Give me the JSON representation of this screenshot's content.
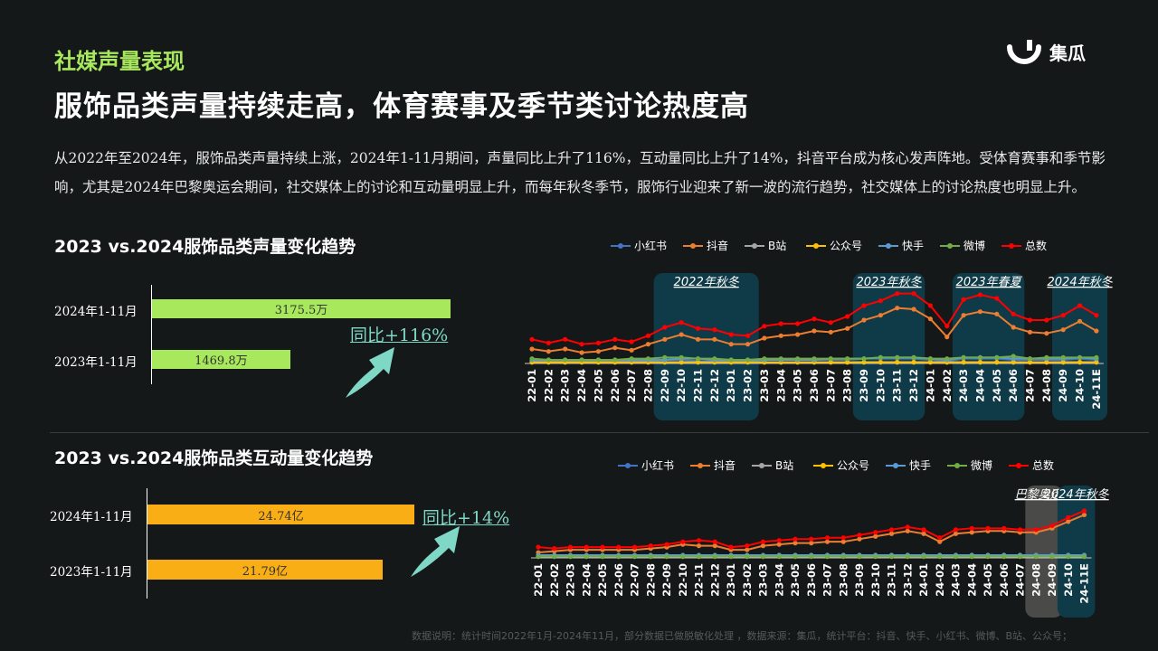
{
  "header": {
    "section_tag": "社媒声量表现",
    "headline": "服饰品类声量持续走高，体育赛事及季节类讨论热度高",
    "logo_text": "集瓜"
  },
  "intro": "从2022年至2024年，服饰品类声量持续上涨，2024年1-11月期间，声量同比上升了116%，互动量同比上升了14%，抖音平台成为核心发声阵地。受体育赛事和季节影响，尤其是2024年巴黎奥运会期间，社交媒体上的讨论和互动量明显上升，而每年秋冬季节，服饰行业迎来了新一波的流行趋势，社交媒体上的讨论热度也明显上升。",
  "footnote": "数据说明：统计时间2022年1月-2024年11月，部分数据已做脱敏化处理 ，数据来源：集瓜，统计平台：抖音、快手、小红书、微博、B站、公众号；",
  "colors": {
    "accent_green": "#a8e85c",
    "accent_orange": "#f9ae16",
    "teal": "#7fd8c5",
    "highlight_box": "#0f3a47"
  },
  "chart_data": [
    {
      "type": "bar",
      "title": "2023 vs.2024服饰品类声量变化趋势",
      "categories": [
        "2024年1-11月",
        "2023年1-11月"
      ],
      "values": [
        3175.5,
        1469.8
      ],
      "value_labels": [
        "3175.5万",
        "1469.8万"
      ],
      "bar_color": "#a8e85c",
      "annotation": "同比+116%",
      "icon": "arrow-up-icon"
    },
    {
      "type": "line",
      "legend": [
        "小红书",
        "抖音",
        "B站",
        "公众号",
        "快手",
        "微博",
        "总数"
      ],
      "legend_placement": "top",
      "series_colors": [
        "#4472c4",
        "#ed7d31",
        "#a5a5a5",
        "#ffc000",
        "#5b9bd5",
        "#70ad47",
        "#ff0000"
      ],
      "x": [
        "22-01",
        "22-02",
        "22-03",
        "22-04",
        "22-05",
        "22-06",
        "22-07",
        "22-08",
        "22-09",
        "22-10",
        "22-11",
        "22-12",
        "23-01",
        "23-02",
        "23-03",
        "23-04",
        "23-05",
        "23-06",
        "23-07",
        "23-08",
        "23-09",
        "23-10",
        "23-11",
        "23-12",
        "24-01",
        "24-02",
        "24-03",
        "24-04",
        "24-05",
        "24-06",
        "24-07",
        "24-08",
        "24-09",
        "24-10",
        "24-11E"
      ],
      "series": [
        {
          "name": "小红书",
          "values": [
            2,
            2,
            2,
            2,
            2,
            2,
            2,
            2,
            3,
            3,
            2,
            2,
            2,
            2,
            3,
            3,
            3,
            3,
            3,
            3,
            4,
            4,
            4,
            4,
            3,
            2,
            4,
            4,
            4,
            3,
            3,
            3,
            3,
            4,
            3
          ]
        },
        {
          "name": "抖音",
          "values": [
            12,
            10,
            12,
            9,
            10,
            13,
            11,
            16,
            20,
            24,
            20,
            20,
            16,
            16,
            21,
            23,
            24,
            27,
            26,
            29,
            36,
            40,
            46,
            45,
            37,
            22,
            40,
            43,
            41,
            30,
            26,
            25,
            28,
            35,
            27
          ]
        },
        {
          "name": "B站",
          "values": [
            1,
            1,
            1,
            1,
            1,
            1,
            1,
            1,
            1,
            1,
            1,
            1,
            1,
            1,
            1,
            1,
            1,
            1,
            1,
            1,
            1,
            1,
            1,
            1,
            1,
            1,
            1,
            1,
            1,
            1,
            1,
            1,
            1,
            1,
            1
          ]
        },
        {
          "name": "公众号",
          "values": [
            1,
            1,
            1,
            1,
            1,
            1,
            1,
            1,
            1,
            1,
            1,
            1,
            1,
            1,
            1,
            1,
            1,
            1,
            1,
            1,
            1,
            1,
            1,
            1,
            1,
            1,
            1,
            1,
            1,
            1,
            1,
            1,
            1,
            1,
            1
          ]
        },
        {
          "name": "快手",
          "values": [
            3,
            3,
            3,
            3,
            3,
            3,
            3,
            3,
            3,
            4,
            4,
            3,
            3,
            3,
            3,
            3,
            3,
            3,
            4,
            4,
            4,
            5,
            5,
            5,
            4,
            3,
            5,
            5,
            5,
            4,
            4,
            4,
            4,
            5,
            4
          ]
        },
        {
          "name": "微博",
          "values": [
            4,
            3,
            3,
            3,
            3,
            3,
            4,
            4,
            5,
            5,
            4,
            4,
            3,
            3,
            4,
            4,
            4,
            4,
            4,
            4,
            4,
            5,
            5,
            5,
            4,
            4,
            5,
            5,
            5,
            6,
            4,
            5,
            5,
            5,
            5
          ]
        },
        {
          "name": "总数",
          "values": [
            20,
            17,
            20,
            16,
            17,
            20,
            18,
            23,
            30,
            34,
            29,
            28,
            24,
            23,
            31,
            33,
            33,
            37,
            34,
            39,
            48,
            52,
            58,
            58,
            48,
            31,
            53,
            57,
            54,
            41,
            36,
            36,
            40,
            48,
            40
          ]
        }
      ],
      "highlights": [
        "2022年秋冬",
        "2023年秋冬",
        "2023年春夏",
        "2024年秋冬"
      ]
    },
    {
      "type": "bar",
      "title": "2023 vs.2024服饰品类互动量变化趋势",
      "categories": [
        "2024年1-11月",
        "2023年1-11月"
      ],
      "values": [
        24.74,
        21.79
      ],
      "value_labels": [
        "24.74亿",
        "21.79亿"
      ],
      "bar_color": "#f9ae16",
      "annotation": "同比+14%",
      "icon": "arrow-up-icon"
    },
    {
      "type": "line",
      "legend": [
        "小红书",
        "抖音",
        "B站",
        "公众号",
        "快手",
        "微博",
        "总数"
      ],
      "legend_placement": "top",
      "series_colors": [
        "#4472c4",
        "#ed7d31",
        "#a5a5a5",
        "#ffc000",
        "#5b9bd5",
        "#70ad47",
        "#ff0000"
      ],
      "x": [
        "22-01",
        "22-02",
        "22-03",
        "22-04",
        "22-05",
        "22-06",
        "22-07",
        "22-08",
        "22-09",
        "22-10",
        "22-11",
        "22-12",
        "23-01",
        "23-02",
        "23-03",
        "23-04",
        "23-05",
        "23-06",
        "23-07",
        "23-08",
        "23-09",
        "23-10",
        "23-11",
        "23-12",
        "24-01",
        "24-02",
        "24-03",
        "24-04",
        "24-05",
        "24-06",
        "24-07",
        "24-08",
        "24-09",
        "24-10",
        "24-11E"
      ],
      "series": [
        {
          "name": "小红书",
          "values": [
            1,
            1,
            1,
            1,
            1,
            1,
            1,
            1,
            1,
            1,
            1,
            1,
            1,
            1,
            1,
            1,
            1,
            1,
            1,
            1,
            1,
            1,
            1,
            1,
            1,
            1,
            1,
            1,
            1,
            1,
            1,
            1,
            1,
            1,
            1
          ]
        },
        {
          "name": "抖音",
          "values": [
            4,
            5,
            6,
            6,
            6,
            6,
            6,
            7,
            8,
            10,
            9,
            9,
            6,
            6,
            9,
            10,
            11,
            11,
            12,
            12,
            14,
            16,
            18,
            20,
            18,
            12,
            18,
            19,
            20,
            20,
            19,
            19,
            22,
            27,
            32
          ]
        },
        {
          "name": "B站",
          "values": [
            1,
            1,
            1,
            1,
            1,
            1,
            1,
            1,
            1,
            1,
            1,
            1,
            1,
            1,
            1,
            2,
            2,
            2,
            2,
            2,
            2,
            2,
            2,
            2,
            2,
            2,
            2,
            2,
            2,
            2,
            2,
            2,
            2,
            2,
            2
          ]
        },
        {
          "name": "公众号",
          "values": [
            1,
            1,
            1,
            1,
            1,
            1,
            1,
            1,
            1,
            1,
            1,
            1,
            1,
            1,
            1,
            1,
            1,
            1,
            1,
            1,
            1,
            1,
            1,
            1,
            1,
            1,
            1,
            1,
            1,
            1,
            1,
            1,
            1,
            1,
            1
          ]
        },
        {
          "name": "快手",
          "values": [
            2,
            2,
            2,
            2,
            2,
            2,
            2,
            2,
            2,
            2,
            2,
            2,
            2,
            2,
            2,
            2,
            2,
            2,
            2,
            2,
            2,
            2,
            2,
            2,
            2,
            2,
            2,
            2,
            2,
            2,
            2,
            2,
            2,
            2,
            2
          ]
        },
        {
          "name": "微博",
          "values": [
            1,
            1,
            1,
            1,
            1,
            1,
            1,
            1,
            1,
            1,
            1,
            1,
            1,
            1,
            1,
            1,
            1,
            1,
            1,
            1,
            1,
            1,
            1,
            1,
            1,
            1,
            1,
            1,
            1,
            1,
            1,
            1,
            1,
            1,
            1
          ]
        },
        {
          "name": "总数",
          "values": [
            8,
            7,
            8,
            8,
            8,
            8,
            8,
            9,
            10,
            12,
            13,
            12,
            8,
            9,
            12,
            13,
            14,
            14,
            15,
            15,
            17,
            19,
            21,
            23,
            21,
            15,
            21,
            22,
            22,
            22,
            21,
            21,
            24,
            30,
            35
          ]
        }
      ],
      "highlights": [
        "巴黎奥运会",
        "2024年秋冬"
      ]
    }
  ]
}
